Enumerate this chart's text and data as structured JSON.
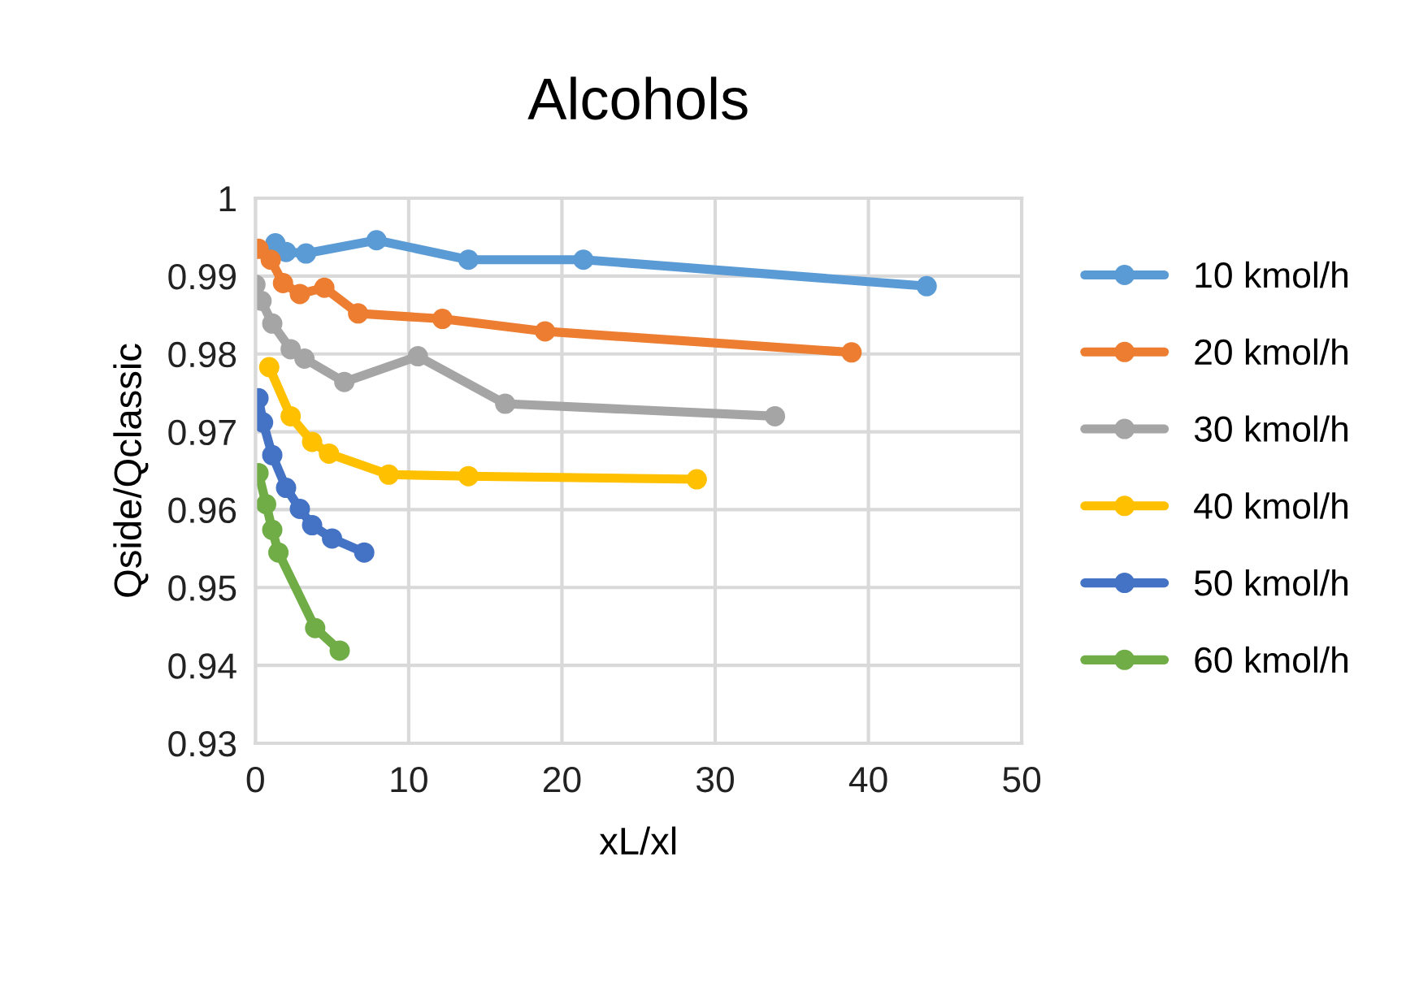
{
  "chart_data": {
    "type": "line",
    "title": "Alcohols",
    "xlabel": "xL/xl",
    "ylabel": "Qside/Qclassic",
    "xlim": [
      0,
      50
    ],
    "xticks": [
      0,
      10,
      20,
      30,
      40,
      50
    ],
    "ylim": [
      0.93,
      1
    ],
    "yticks": [
      0.93,
      0.94,
      0.95,
      0.96,
      0.97,
      0.98,
      0.99,
      1
    ],
    "grid": true,
    "legend": "right",
    "marker": "circle",
    "line_style": "solid",
    "series": [
      {
        "name": "10 kmol/h",
        "color": "#5b9bd5",
        "x": [
          1.3,
          2.0,
          3.3,
          7.9,
          13.9,
          21.4,
          43.8
        ],
        "values": [
          0.9942,
          0.9931,
          0.9929,
          0.9946,
          0.9921,
          0.9921,
          0.9887
        ]
      },
      {
        "name": "20 kmol/h",
        "color": "#ed7d31",
        "x": [
          0.2,
          1.0,
          1.8,
          2.9,
          4.5,
          6.7,
          12.2,
          18.9,
          38.9
        ],
        "values": [
          0.9935,
          0.9921,
          0.9891,
          0.9877,
          0.9885,
          0.9852,
          0.9845,
          0.9829,
          0.9802
        ]
      },
      {
        "name": "30 kmol/h",
        "color": "#a5a5a5",
        "x": [
          0,
          0.4,
          1.1,
          2.3,
          3.2,
          5.8,
          10.6,
          16.3,
          33.9
        ],
        "values": [
          0.9889,
          0.9868,
          0.9839,
          0.9806,
          0.9794,
          0.9764,
          0.9797,
          0.9736,
          0.972
        ]
      },
      {
        "name": "40 kmol/h",
        "color": "#ffc000",
        "x": [
          0.9,
          2.3,
          3.7,
          4.8,
          8.7,
          13.9,
          28.8
        ],
        "values": [
          0.9783,
          0.972,
          0.9687,
          0.9672,
          0.9645,
          0.9643,
          0.9639
        ]
      },
      {
        "name": "50 kmol/h",
        "color": "#4472c4",
        "x": [
          0.2,
          0.5,
          1.1,
          2.0,
          2.9,
          3.7,
          5.0,
          7.1
        ],
        "values": [
          0.9743,
          0.9712,
          0.967,
          0.9628,
          0.9601,
          0.958,
          0.9563,
          0.9545
        ]
      },
      {
        "name": "60 kmol/h",
        "color": "#70ad47",
        "x": [
          0.2,
          0.7,
          1.1,
          1.5,
          3.9,
          5.5
        ],
        "values": [
          0.9647,
          0.9607,
          0.9574,
          0.9545,
          0.9448,
          0.9419
        ]
      }
    ]
  }
}
